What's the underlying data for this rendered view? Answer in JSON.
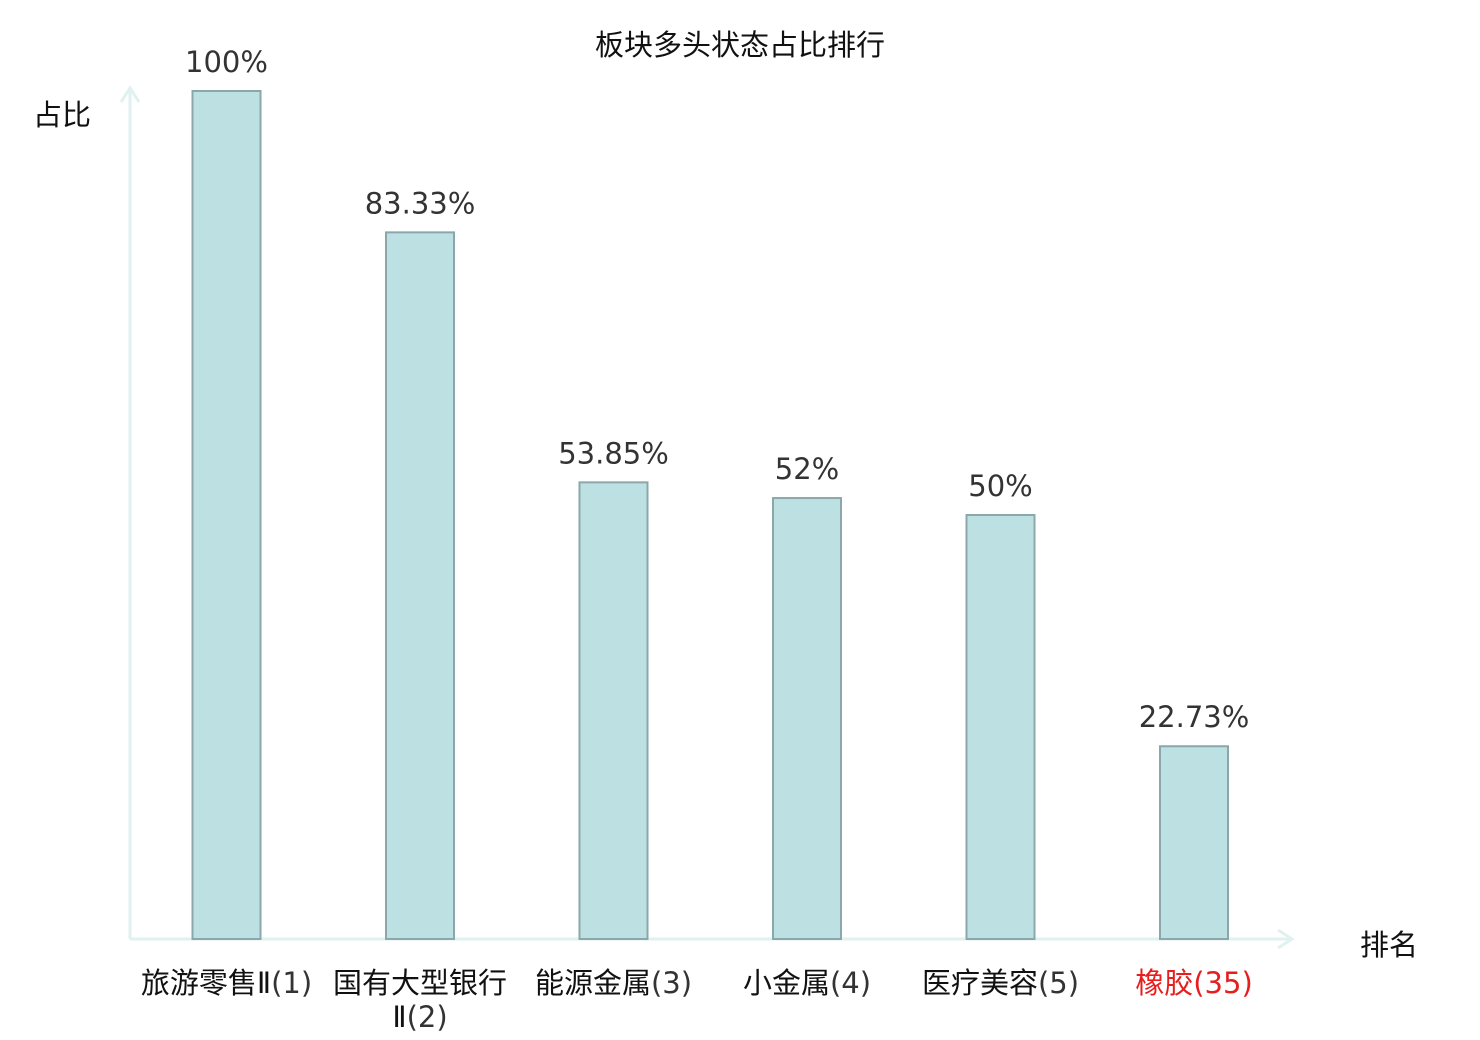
{
  "chart_data": {
    "type": "bar",
    "title": "板块多头状态占比排行",
    "ylabel": "占比",
    "xlabel": "排名",
    "ylim": [
      0,
      100
    ],
    "categories": [
      {
        "name": "旅游零售Ⅱ",
        "rank": "(1)",
        "highlight": false
      },
      {
        "name": "国有大型银行Ⅱ",
        "rank": "(2)",
        "highlight": false
      },
      {
        "name": "能源金属",
        "rank": "(3)",
        "highlight": false
      },
      {
        "name": "小金属",
        "rank": "(4)",
        "highlight": false
      },
      {
        "name": "医疗美容",
        "rank": "(5)",
        "highlight": false
      },
      {
        "name": "橡胶",
        "rank": "(35)",
        "highlight": true
      }
    ],
    "values": [
      100,
      83.33,
      53.85,
      52,
      50,
      22.73
    ],
    "value_labels": [
      "100%",
      "83.33%",
      "53.85%",
      "52%",
      "50%",
      "22.73%"
    ],
    "colors": {
      "bar_fill": "#bde0e3",
      "bar_stroke": "#8aa8ab",
      "axis": "#dff2ef",
      "highlight": "#e61e1e"
    }
  }
}
